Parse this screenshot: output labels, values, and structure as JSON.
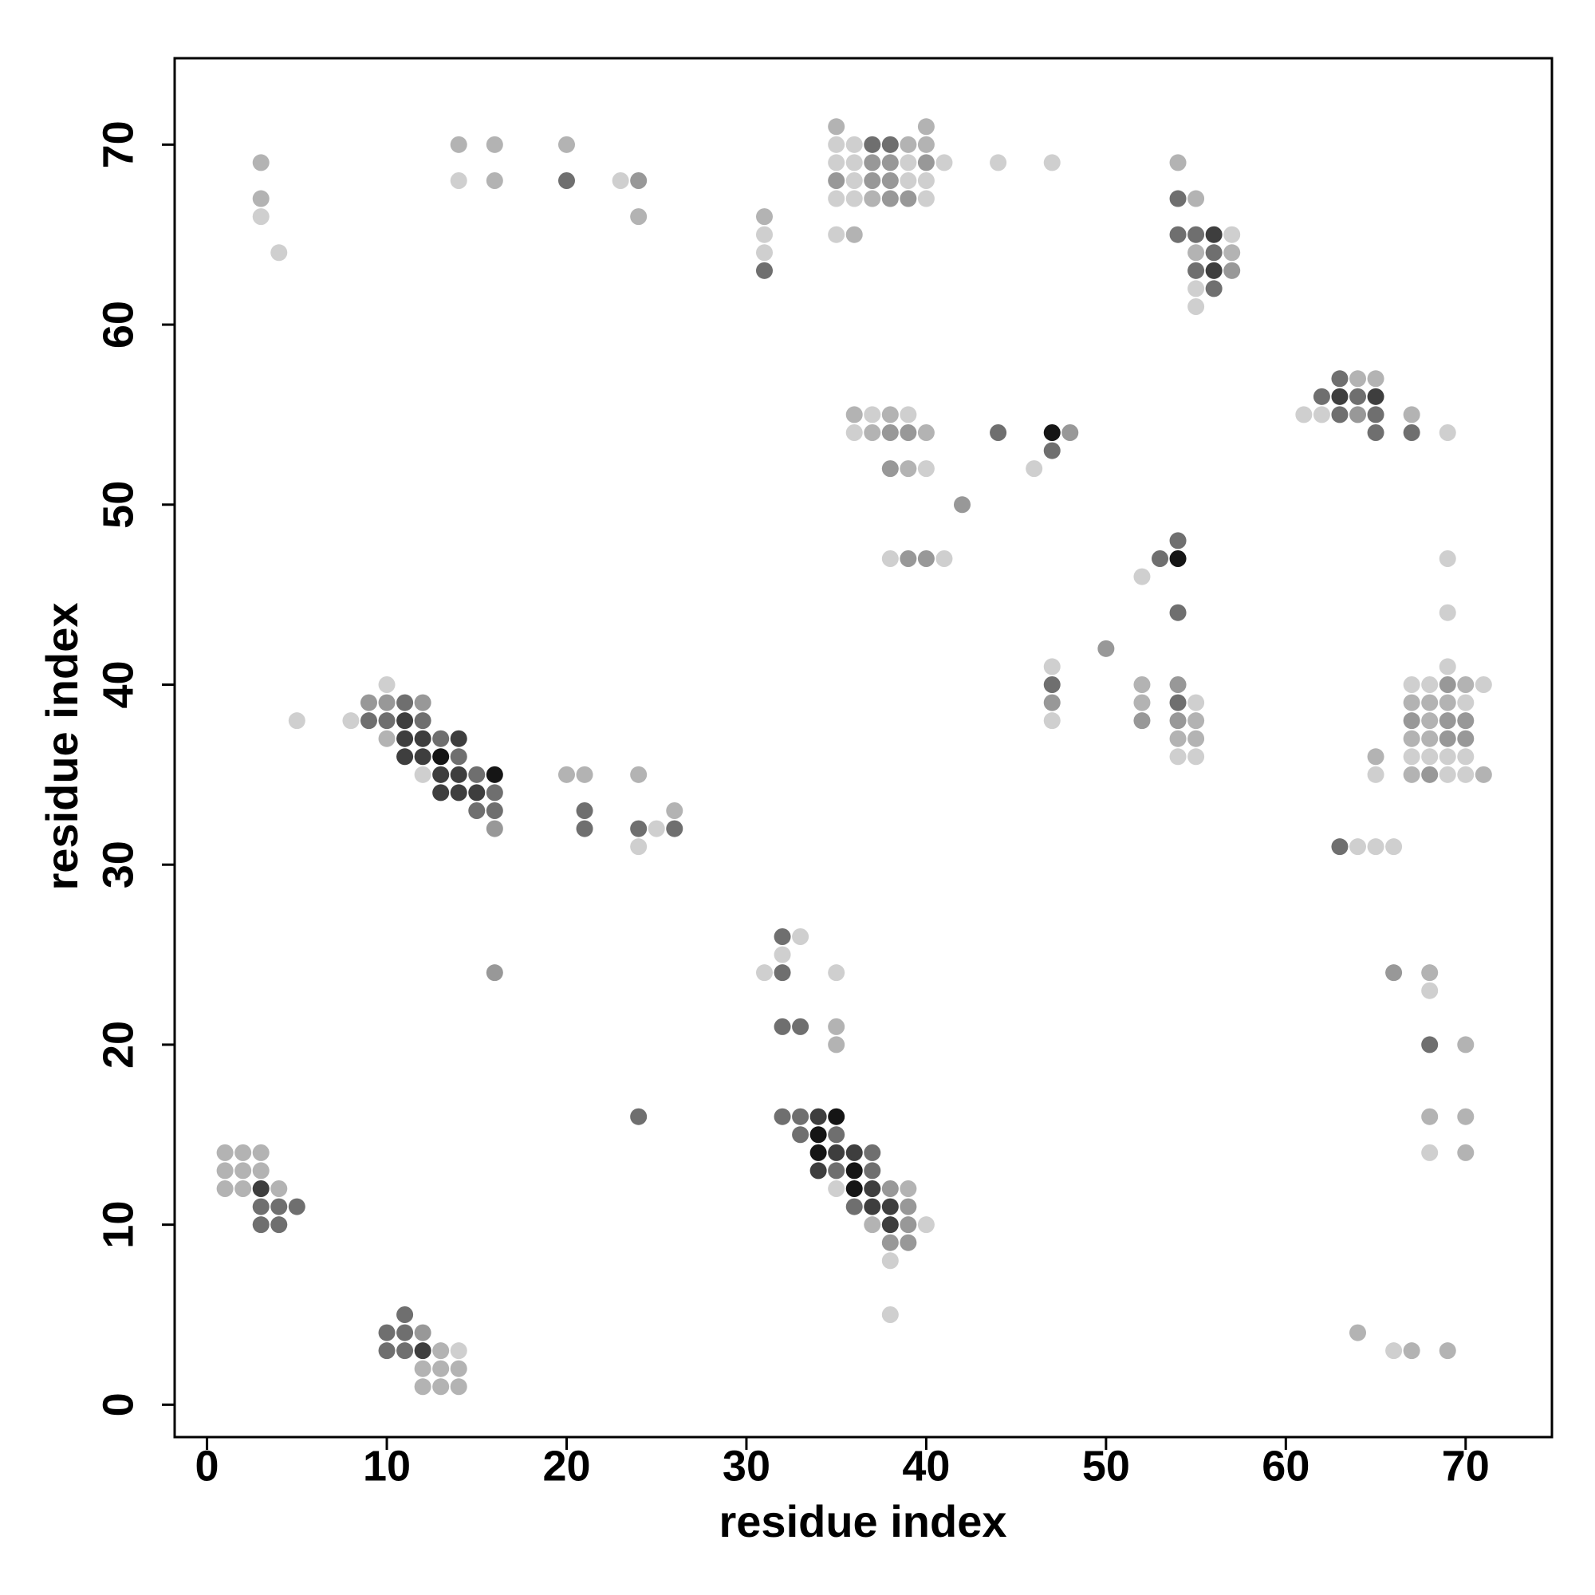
{
  "chart_data": {
    "type": "scatter",
    "xlabel": "residue index",
    "ylabel": "residue index",
    "xlim": [
      -1.8,
      74.8
    ],
    "ylim": [
      -1.8,
      74.8
    ],
    "xticks": [
      0,
      10,
      20,
      30,
      40,
      50,
      60,
      70
    ],
    "yticks": [
      0,
      10,
      20,
      30,
      40,
      50,
      60,
      70
    ],
    "grid": false,
    "x": [
      35,
      40,
      14,
      16,
      20,
      35,
      36,
      37,
      38,
      39,
      40,
      3,
      35,
      36,
      37,
      38,
      39,
      40,
      41,
      44,
      47,
      54,
      14,
      16,
      20,
      23,
      24,
      35,
      36,
      37,
      38,
      39,
      40,
      3,
      35,
      36,
      37,
      38,
      39,
      40,
      54,
      55,
      3,
      24,
      31,
      31,
      35,
      36,
      54,
      55,
      56,
      57,
      4,
      31,
      55,
      56,
      57,
      31,
      55,
      56,
      57,
      55,
      56,
      55,
      63,
      64,
      65,
      62,
      63,
      64,
      65,
      36,
      37,
      38,
      39,
      61,
      62,
      63,
      64,
      65,
      67,
      36,
      37,
      38,
      39,
      40,
      44,
      47,
      48,
      65,
      67,
      69,
      47,
      38,
      39,
      40,
      46,
      42,
      54,
      38,
      39,
      40,
      41,
      53,
      54,
      69,
      52,
      54,
      69,
      50,
      47,
      69,
      10,
      47,
      52,
      54,
      67,
      68,
      69,
      70,
      71,
      9,
      10,
      11,
      12,
      47,
      52,
      54,
      55,
      67,
      68,
      69,
      70,
      5,
      8,
      9,
      10,
      11,
      12,
      47,
      52,
      54,
      55,
      67,
      68,
      69,
      70,
      10,
      11,
      12,
      13,
      14,
      54,
      55,
      67,
      68,
      69,
      70,
      11,
      12,
      13,
      14,
      54,
      55,
      65,
      67,
      68,
      69,
      70,
      12,
      13,
      14,
      15,
      16,
      20,
      21,
      24,
      65,
      67,
      68,
      69,
      70,
      71,
      13,
      14,
      15,
      16,
      15,
      16,
      21,
      26,
      16,
      21,
      24,
      25,
      26,
      24,
      63,
      64,
      65,
      66,
      32,
      33,
      32,
      16,
      31,
      32,
      35,
      66,
      68,
      68,
      32,
      33,
      35,
      35,
      68,
      70,
      24,
      32,
      33,
      34,
      35,
      68,
      70,
      33,
      34,
      35,
      1,
      2,
      3,
      34,
      35,
      36,
      37,
      68,
      70,
      1,
      2,
      3,
      34,
      35,
      36,
      37,
      1,
      2,
      3,
      4,
      35,
      36,
      37,
      38,
      39,
      3,
      4,
      5,
      36,
      37,
      38,
      39,
      3,
      4,
      37,
      38,
      39,
      40,
      38,
      39,
      38,
      11,
      38,
      10,
      11,
      12,
      64,
      10,
      11,
      12,
      13,
      14,
      66,
      67,
      69,
      12,
      13,
      14,
      12,
      13,
      14
    ],
    "y": [
      71,
      71,
      70,
      70,
      70,
      70,
      70,
      70,
      70,
      70,
      70,
      69,
      69,
      69,
      69,
      69,
      69,
      69,
      69,
      69,
      69,
      69,
      68,
      68,
      68,
      68,
      68,
      68,
      68,
      68,
      68,
      68,
      68,
      67,
      67,
      67,
      67,
      67,
      67,
      67,
      67,
      67,
      66,
      66,
      66,
      65,
      65,
      65,
      65,
      65,
      65,
      65,
      64,
      64,
      64,
      64,
      64,
      63,
      63,
      63,
      63,
      62,
      62,
      61,
      57,
      57,
      57,
      56,
      56,
      56,
      56,
      55,
      55,
      55,
      55,
      55,
      55,
      55,
      55,
      55,
      55,
      54,
      54,
      54,
      54,
      54,
      54,
      54,
      54,
      54,
      54,
      54,
      53,
      52,
      52,
      52,
      52,
      50,
      48,
      47,
      47,
      47,
      47,
      47,
      47,
      47,
      46,
      44,
      44,
      42,
      41,
      41,
      40,
      40,
      40,
      40,
      40,
      40,
      40,
      40,
      40,
      39,
      39,
      39,
      39,
      39,
      39,
      39,
      39,
      39,
      39,
      39,
      39,
      38,
      38,
      38,
      38,
      38,
      38,
      38,
      38,
      38,
      38,
      38,
      38,
      38,
      38,
      37,
      37,
      37,
      37,
      37,
      37,
      37,
      37,
      37,
      37,
      37,
      36,
      36,
      36,
      36,
      36,
      36,
      36,
      36,
      36,
      36,
      36,
      35,
      35,
      35,
      35,
      35,
      35,
      35,
      35,
      35,
      35,
      35,
      35,
      35,
      35,
      34,
      34,
      34,
      34,
      33,
      33,
      33,
      33,
      32,
      32,
      32,
      32,
      32,
      31,
      31,
      31,
      31,
      31,
      26,
      26,
      25,
      24,
      24,
      24,
      24,
      24,
      24,
      23,
      21,
      21,
      21,
      20,
      20,
      20,
      16,
      16,
      16,
      16,
      16,
      16,
      16,
      15,
      15,
      15,
      14,
      14,
      14,
      14,
      14,
      14,
      14,
      14,
      14,
      13,
      13,
      13,
      13,
      13,
      13,
      13,
      12,
      12,
      12,
      12,
      12,
      12,
      12,
      12,
      12,
      11,
      11,
      11,
      11,
      11,
      11,
      11,
      10,
      10,
      10,
      10,
      10,
      10,
      9,
      9,
      8,
      5,
      5,
      4,
      4,
      4,
      4,
      3,
      3,
      3,
      3,
      3,
      3,
      3,
      3,
      2,
      2,
      2,
      1,
      1,
      1
    ],
    "colors": [
      "#b3b3b3",
      "#b3b3b3",
      "#b3b3b3",
      "#b3b3b3",
      "#b3b3b3",
      "#cfcfcf",
      "#cfcfcf",
      "#6f6f6f",
      "#6f6f6f",
      "#b3b3b3",
      "#b3b3b3",
      "#b3b3b3",
      "#cfcfcf",
      "#cfcfcf",
      "#989898",
      "#989898",
      "#cfcfcf",
      "#989898",
      "#cfcfcf",
      "#cfcfcf",
      "#cfcfcf",
      "#b3b3b3",
      "#cfcfcf",
      "#b3b3b3",
      "#6f6f6f",
      "#cfcfcf",
      "#989898",
      "#989898",
      "#cfcfcf",
      "#989898",
      "#989898",
      "#cfcfcf",
      "#cfcfcf",
      "#b3b3b3",
      "#cfcfcf",
      "#cfcfcf",
      "#b3b3b3",
      "#989898",
      "#989898",
      "#cfcfcf",
      "#6f6f6f",
      "#b3b3b3",
      "#cfcfcf",
      "#b3b3b3",
      "#b3b3b3",
      "#cfcfcf",
      "#cfcfcf",
      "#b3b3b3",
      "#6f6f6f",
      "#6f6f6f",
      "#3e3e3e",
      "#cfcfcf",
      "#cfcfcf",
      "#cfcfcf",
      "#b3b3b3",
      "#6f6f6f",
      "#b3b3b3",
      "#6f6f6f",
      "#6f6f6f",
      "#3e3e3e",
      "#989898",
      "#cfcfcf",
      "#6f6f6f",
      "#cfcfcf",
      "#6f6f6f",
      "#b3b3b3",
      "#b3b3b3",
      "#6f6f6f",
      "#3e3e3e",
      "#6f6f6f",
      "#3e3e3e",
      "#b3b3b3",
      "#cfcfcf",
      "#b3b3b3",
      "#cfcfcf",
      "#cfcfcf",
      "#cfcfcf",
      "#6f6f6f",
      "#989898",
      "#6f6f6f",
      "#b3b3b3",
      "#cfcfcf",
      "#b3b3b3",
      "#989898",
      "#989898",
      "#b3b3b3",
      "#6f6f6f",
      "#151515",
      "#989898",
      "#6f6f6f",
      "#6f6f6f",
      "#cfcfcf",
      "#6f6f6f",
      "#989898",
      "#b3b3b3",
      "#cfcfcf",
      "#cfcfcf",
      "#989898",
      "#6f6f6f",
      "#cfcfcf",
      "#989898",
      "#989898",
      "#cfcfcf",
      "#6f6f6f",
      "#151515",
      "#cfcfcf",
      "#cfcfcf",
      "#6f6f6f",
      "#cfcfcf",
      "#989898",
      "#cfcfcf",
      "#cfcfcf",
      "#cfcfcf",
      "#6f6f6f",
      "#b3b3b3",
      "#989898",
      "#cfcfcf",
      "#cfcfcf",
      "#989898",
      "#b3b3b3",
      "#cfcfcf",
      "#989898",
      "#989898",
      "#6f6f6f",
      "#989898",
      "#989898",
      "#b3b3b3",
      "#6f6f6f",
      "#cfcfcf",
      "#b3b3b3",
      "#b3b3b3",
      "#b3b3b3",
      "#cfcfcf",
      "#cfcfcf",
      "#cfcfcf",
      "#6f6f6f",
      "#6f6f6f",
      "#3e3e3e",
      "#6f6f6f",
      "#cfcfcf",
      "#989898",
      "#989898",
      "#b3b3b3",
      "#989898",
      "#b3b3b3",
      "#989898",
      "#989898",
      "#b3b3b3",
      "#3e3e3e",
      "#3e3e3e",
      "#6f6f6f",
      "#3e3e3e",
      "#b3b3b3",
      "#b3b3b3",
      "#b3b3b3",
      "#b3b3b3",
      "#989898",
      "#989898",
      "#3e3e3e",
      "#3e3e3e",
      "#151515",
      "#6f6f6f",
      "#cfcfcf",
      "#cfcfcf",
      "#b3b3b3",
      "#cfcfcf",
      "#cfcfcf",
      "#cfcfcf",
      "#cfcfcf",
      "#cfcfcf",
      "#3e3e3e",
      "#3e3e3e",
      "#6f6f6f",
      "#151515",
      "#b3b3b3",
      "#b3b3b3",
      "#b3b3b3",
      "#cfcfcf",
      "#b3b3b3",
      "#989898",
      "#cfcfcf",
      "#cfcfcf",
      "#b3b3b3",
      "#3e3e3e",
      "#3e3e3e",
      "#3e3e3e",
      "#6f6f6f",
      "#6f6f6f",
      "#6f6f6f",
      "#6f6f6f",
      "#b3b3b3",
      "#989898",
      "#6f6f6f",
      "#6f6f6f",
      "#cfcfcf",
      "#6f6f6f",
      "#cfcfcf",
      "#6f6f6f",
      "#cfcfcf",
      "#cfcfcf",
      "#cfcfcf",
      "#6f6f6f",
      "#cfcfcf",
      "#cfcfcf",
      "#989898",
      "#cfcfcf",
      "#6f6f6f",
      "#cfcfcf",
      "#989898",
      "#b3b3b3",
      "#cfcfcf",
      "#6f6f6f",
      "#6f6f6f",
      "#b3b3b3",
      "#b3b3b3",
      "#6f6f6f",
      "#b3b3b3",
      "#6f6f6f",
      "#6f6f6f",
      "#6f6f6f",
      "#3e3e3e",
      "#151515",
      "#b3b3b3",
      "#b3b3b3",
      "#6f6f6f",
      "#151515",
      "#6f6f6f",
      "#b3b3b3",
      "#b3b3b3",
      "#b3b3b3",
      "#151515",
      "#3e3e3e",
      "#3e3e3e",
      "#6f6f6f",
      "#cfcfcf",
      "#b3b3b3",
      "#b3b3b3",
      "#b3b3b3",
      "#b3b3b3",
      "#3e3e3e",
      "#6f6f6f",
      "#151515",
      "#6f6f6f",
      "#b3b3b3",
      "#b3b3b3",
      "#3e3e3e",
      "#b3b3b3",
      "#cfcfcf",
      "#151515",
      "#3e3e3e",
      "#989898",
      "#b3b3b3",
      "#6f6f6f",
      "#6f6f6f",
      "#6f6f6f",
      "#6f6f6f",
      "#3e3e3e",
      "#3e3e3e",
      "#989898",
      "#6f6f6f",
      "#6f6f6f",
      "#b3b3b3",
      "#3e3e3e",
      "#989898",
      "#cfcfcf",
      "#989898",
      "#989898",
      "#cfcfcf",
      "#6f6f6f",
      "#cfcfcf",
      "#6f6f6f",
      "#6f6f6f",
      "#989898",
      "#b3b3b3",
      "#6f6f6f",
      "#6f6f6f",
      "#3e3e3e",
      "#b3b3b3",
      "#cfcfcf",
      "#cfcfcf",
      "#b3b3b3",
      "#b3b3b3",
      "#b3b3b3",
      "#b3b3b3",
      "#b3b3b3",
      "#b3b3b3",
      "#b3b3b3",
      "#b3b3b3"
    ]
  }
}
